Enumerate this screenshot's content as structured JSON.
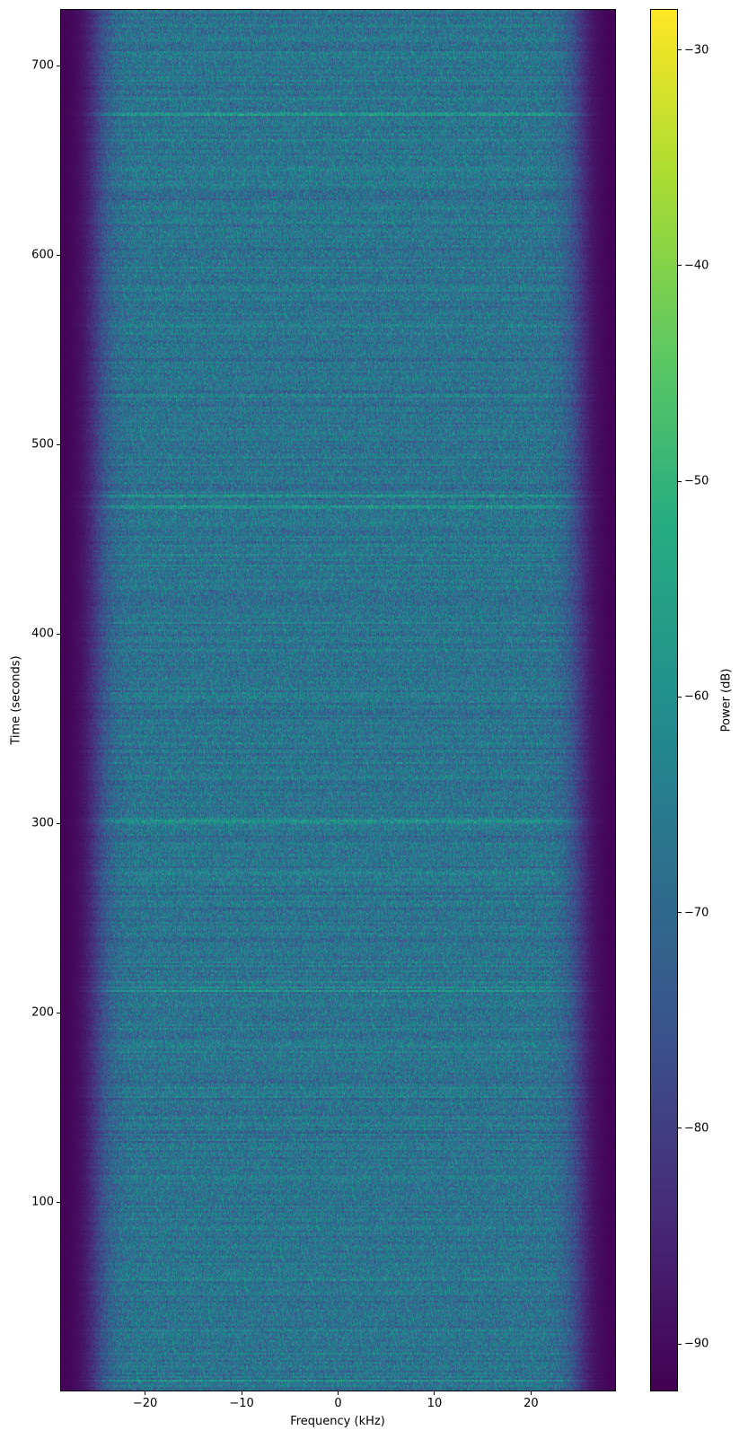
{
  "chart_data": {
    "type": "heatmap",
    "title": "",
    "xlabel": "Frequency (kHz)",
    "ylabel": "Time (seconds)",
    "xlim": [
      -28.8,
      28.8
    ],
    "ylim": [
      0,
      730
    ],
    "x_ticks": [
      -20,
      -10,
      0,
      10,
      20
    ],
    "x_tick_labels": [
      "−20",
      "−10",
      "0",
      "10",
      "20"
    ],
    "y_ticks": [
      100,
      200,
      300,
      400,
      500,
      600,
      700
    ],
    "y_tick_labels": [
      "100",
      "200",
      "300",
      "400",
      "500",
      "600",
      "700"
    ],
    "grid": false,
    "colormap": "viridis",
    "colorbar": {
      "label": "Power (dB)",
      "range": [
        -92.2,
        -28.1
      ],
      "ticks": [
        -30,
        -40,
        -50,
        -60,
        -70,
        -80,
        -90
      ],
      "tick_labels": [
        "−30",
        "−40",
        "−50",
        "−60",
        "−70",
        "−80",
        "−90"
      ],
      "position": "right"
    },
    "passband_level_db": -67,
    "passband_edge_khz": [
      -26,
      26
    ],
    "stopband_level_db": -92,
    "bright_lines_seconds": [
      5,
      160,
      211,
      213,
      216,
      301,
      467,
      473,
      675
    ]
  }
}
